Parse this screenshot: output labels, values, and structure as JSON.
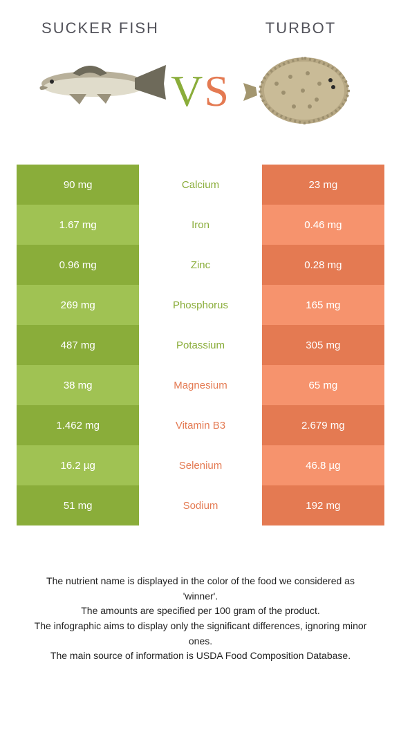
{
  "colors": {
    "left": "#8aad3a",
    "left_alt": "#97b74e",
    "right": "#e47a52",
    "right_alt": "#e88b67",
    "mid_left_text": "#8aad3a",
    "mid_right_text": "#e47a52",
    "title_text": "#52525a"
  },
  "header": {
    "left_title": "Sucker fish",
    "right_title": "Turbot",
    "vs_v": "V",
    "vs_s": "S"
  },
  "rows": [
    {
      "label": "Calcium",
      "left": "90 mg",
      "right": "23 mg",
      "winner": "left"
    },
    {
      "label": "Iron",
      "left": "1.67 mg",
      "right": "0.46 mg",
      "winner": "left"
    },
    {
      "label": "Zinc",
      "left": "0.96 mg",
      "right": "0.28 mg",
      "winner": "left"
    },
    {
      "label": "Phosphorus",
      "left": "269 mg",
      "right": "165 mg",
      "winner": "left"
    },
    {
      "label": "Potassium",
      "left": "487 mg",
      "right": "305 mg",
      "winner": "left"
    },
    {
      "label": "Magnesium",
      "left": "38 mg",
      "right": "65 mg",
      "winner": "right"
    },
    {
      "label": "Vitamin B3",
      "left": "1.462 mg",
      "right": "2.679 mg",
      "winner": "right"
    },
    {
      "label": "Selenium",
      "left": "16.2 µg",
      "right": "46.8 µg",
      "winner": "right"
    },
    {
      "label": "Sodium",
      "left": "51 mg",
      "right": "192 mg",
      "winner": "right"
    }
  ],
  "notes": [
    "The nutrient name is displayed in the color of the food we considered as 'winner'.",
    "The amounts are specified per 100 gram of the product.",
    "The infographic aims to display only the significant differences, ignoring minor ones.",
    "The main source of information is USDA Food Composition Database."
  ]
}
